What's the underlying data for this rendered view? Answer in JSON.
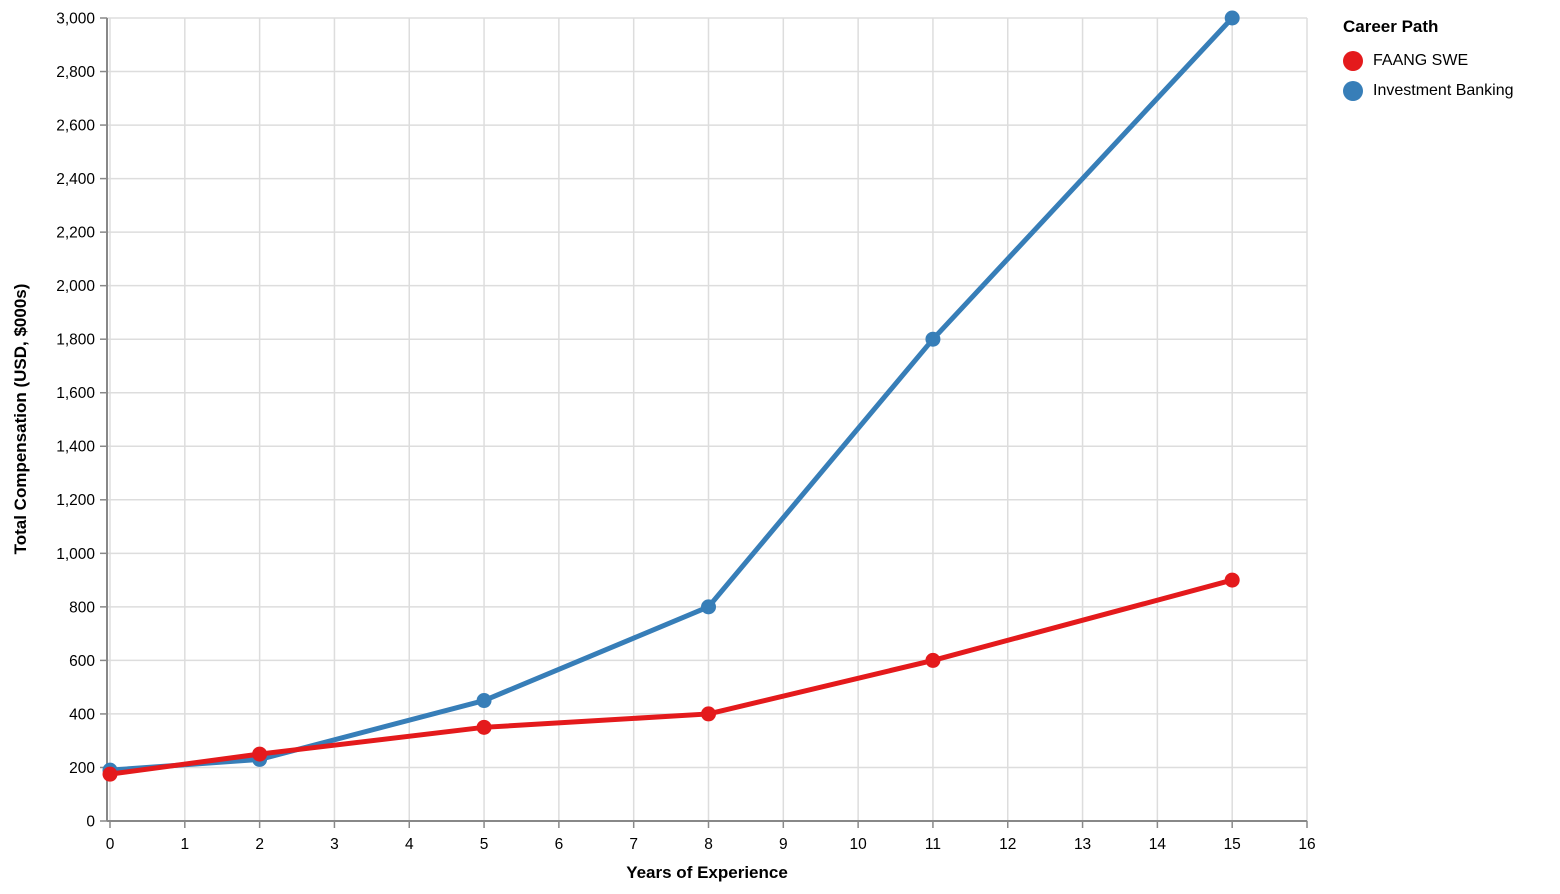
{
  "chart_data": {
    "type": "line",
    "title": "",
    "xlabel": "Years of Experience",
    "ylabel": "Total Compensation (USD, $000s)",
    "xlim": [
      0,
      16
    ],
    "ylim": [
      0,
      3000
    ],
    "grid": true,
    "legend_title": "Career Path",
    "legend_position": "top-right",
    "x_ticks": {
      "values": [
        0,
        1,
        2,
        3,
        4,
        5,
        6,
        7,
        8,
        9,
        10,
        11,
        12,
        13,
        14,
        15,
        16
      ],
      "labels": [
        "0",
        "1",
        "2",
        "3",
        "4",
        "5",
        "6",
        "7",
        "8",
        "9",
        "10",
        "11",
        "12",
        "13",
        "14",
        "15",
        "16"
      ]
    },
    "y_ticks": {
      "values": [
        0,
        200,
        400,
        600,
        800,
        1000,
        1200,
        1400,
        1600,
        1800,
        2000,
        2200,
        2400,
        2600,
        2800,
        3000
      ],
      "labels": [
        "0",
        "200",
        "400",
        "600",
        "800",
        "1,000",
        "1,200",
        "1,400",
        "1,600",
        "1,800",
        "2,000",
        "2,200",
        "2,400",
        "2,600",
        "2,800",
        "3,000"
      ]
    },
    "x": [
      0,
      2,
      5,
      8,
      11,
      15
    ],
    "series": [
      {
        "name": "FAANG SWE",
        "color": "#e41a1c",
        "values": [
          175,
          250,
          350,
          400,
          600,
          900
        ]
      },
      {
        "name": "Investment Banking",
        "color": "#377eb8",
        "values": [
          190,
          230,
          450,
          800,
          1800,
          3000
        ]
      }
    ]
  },
  "colors": {
    "grid": "#dddddd",
    "axis": "#888888",
    "text": "#000000",
    "background": "#ffffff"
  }
}
